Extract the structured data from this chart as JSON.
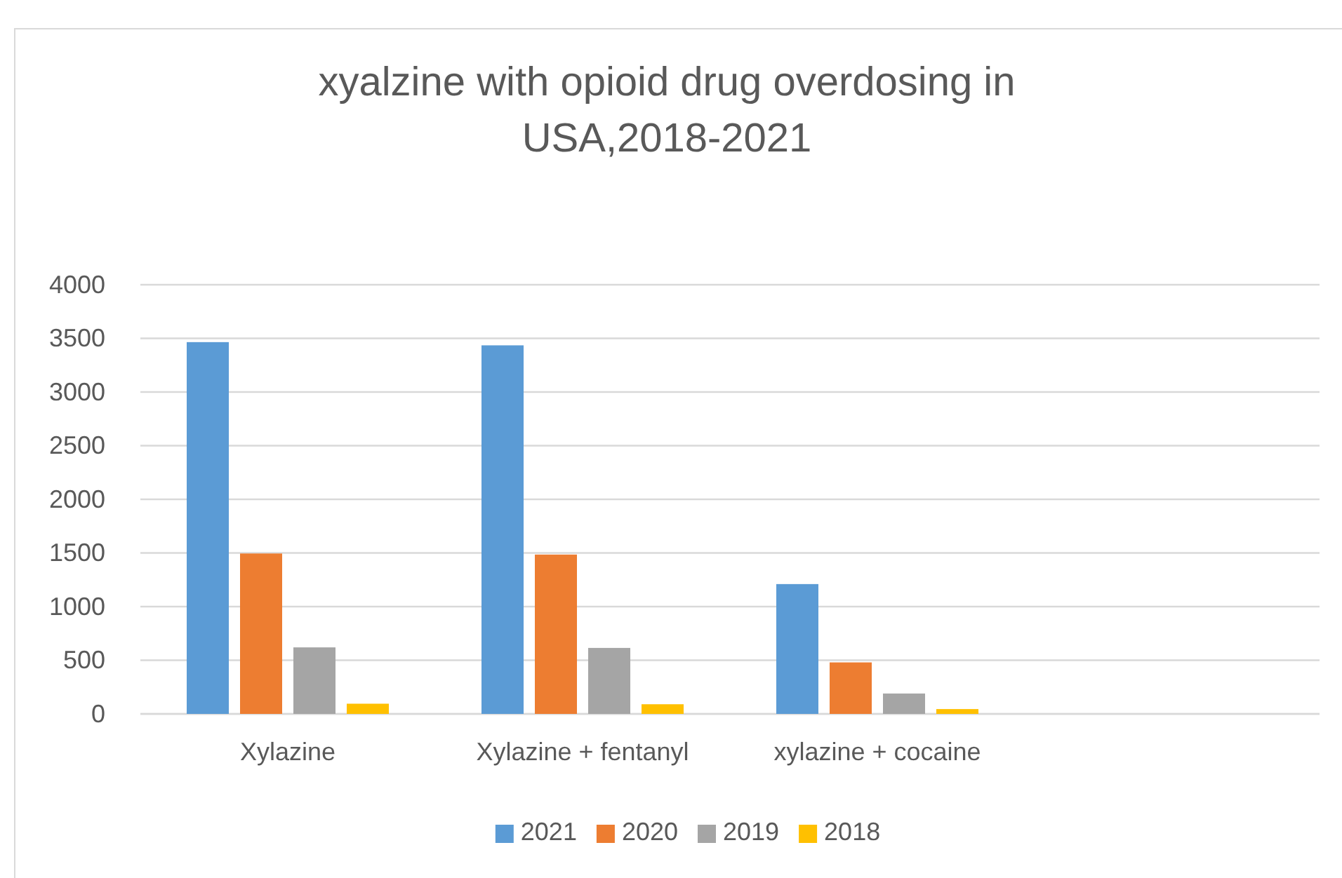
{
  "chart_data": {
    "type": "bar",
    "title": "xyalzine with opioid drug overdosing in USA,2018-2021",
    "categories": [
      "Xylazine",
      "Xylazine + fentanyl",
      "xylazine + cocaine",
      null
    ],
    "series": [
      {
        "name": "2021",
        "color": "#5b9bd5",
        "values": [
          3465,
          3435,
          1210,
          null
        ]
      },
      {
        "name": "2020",
        "color": "#ed7d31",
        "values": [
          1495,
          1485,
          480,
          null
        ]
      },
      {
        "name": "2019",
        "color": "#a5a5a5",
        "values": [
          620,
          615,
          190,
          null
        ]
      },
      {
        "name": "2018",
        "color": "#ffc000",
        "values": [
          95,
          90,
          45,
          null
        ]
      }
    ],
    "ylim": [
      0,
      4000
    ],
    "yticks": [
      0,
      500,
      1000,
      1500,
      2000,
      2500,
      3000,
      3500,
      4000
    ],
    "grid": "y",
    "legend": "bottom"
  }
}
